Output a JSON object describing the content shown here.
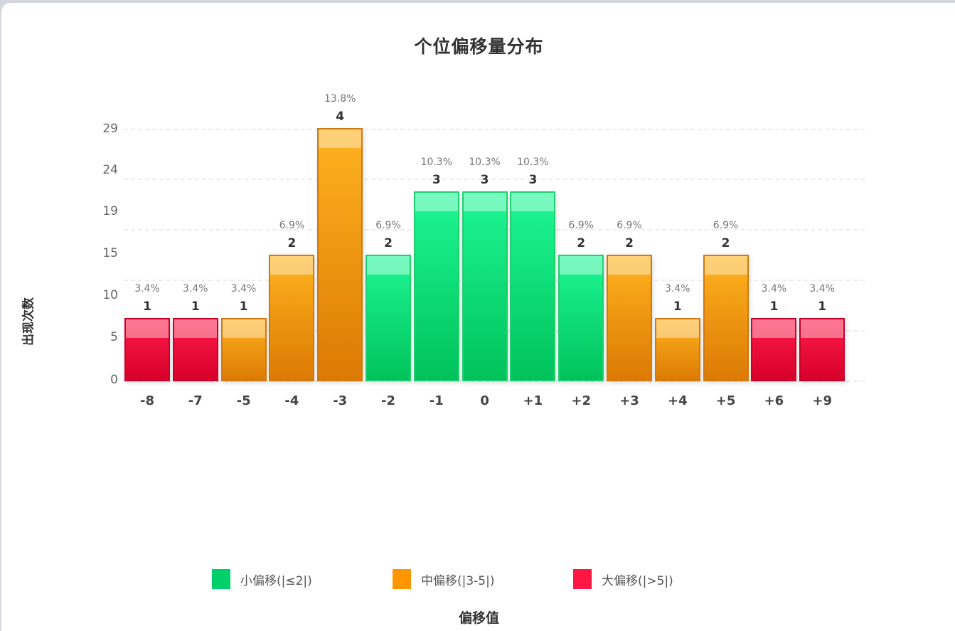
{
  "chart_data": {
    "type": "bar",
    "title": "个位偏移量分布",
    "xlabel": "偏移值",
    "ylabel": "出现次数",
    "categories": [
      "-8",
      "-7",
      "-5",
      "-4",
      "-3",
      "-2",
      "-1",
      "0",
      "+1",
      "+2",
      "+3",
      "+4",
      "+5",
      "+6",
      "+9"
    ],
    "values": [
      1,
      1,
      1,
      2,
      4,
      2,
      3,
      3,
      3,
      2,
      2,
      1,
      2,
      1,
      1
    ],
    "percentages": [
      "3.4%",
      "3.4%",
      "3.4%",
      "6.9%",
      "13.8%",
      "6.9%",
      "10.3%",
      "10.3%",
      "10.3%",
      "6.9%",
      "6.9%",
      "3.4%",
      "6.9%",
      "3.4%",
      "3.4%"
    ],
    "groups": [
      "large",
      "large",
      "medium",
      "medium",
      "medium",
      "small",
      "small",
      "small",
      "small",
      "small",
      "medium",
      "medium",
      "medium",
      "large",
      "large"
    ],
    "yticks": [
      "29",
      "24",
      "19",
      "15",
      "10",
      "5",
      "0"
    ],
    "grid": true,
    "legend_position": "bottom",
    "legend": [
      {
        "key": "small",
        "label": "小偏移(|≤2|)",
        "color": "#00d06a"
      },
      {
        "key": "medium",
        "label": "中偏移(|3-5|)",
        "color": "#ff9500"
      },
      {
        "key": "large",
        "label": "大偏移(|>5|)",
        "color": "#ff1744"
      }
    ]
  }
}
